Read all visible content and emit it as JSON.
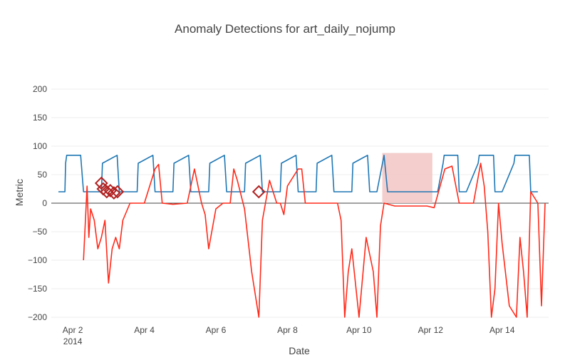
{
  "chart_data": {
    "type": "line",
    "title": "Anomaly Detections for art_daily_nojump",
    "xlabel": "Date",
    "ylabel": "Metric",
    "ylim": [
      -200,
      200
    ],
    "xlim": [
      1.4,
      15.3
    ],
    "y_ticks": [
      200,
      150,
      100,
      50,
      0,
      -50,
      -100,
      -150,
      -200
    ],
    "y_tick_labels": [
      "200",
      "150",
      "100",
      "50",
      "0",
      "−50",
      "−100",
      "−150",
      "−200"
    ],
    "x_ticks": [
      {
        "value": 2,
        "label": "Apr 2",
        "sublabel": "2014"
      },
      {
        "value": 4,
        "label": "Apr 4",
        "sublabel": ""
      },
      {
        "value": 6,
        "label": "Apr 6",
        "sublabel": ""
      },
      {
        "value": 8,
        "label": "Apr 8",
        "sublabel": ""
      },
      {
        "value": 10,
        "label": "Apr 10",
        "sublabel": ""
      },
      {
        "value": 12,
        "label": "Apr 12",
        "sublabel": ""
      },
      {
        "value": 14,
        "label": "Apr 14",
        "sublabel": ""
      }
    ],
    "grid": true,
    "legend": "none",
    "colors": {
      "metric": "#1f77b4",
      "score": "#ff2a1a",
      "anomaly_marker": "#b22222",
      "highlight": "#f2c4c4"
    },
    "highlight_region": {
      "x": [
        10.65,
        12.05
      ],
      "y": [
        0,
        88
      ]
    },
    "series": [
      {
        "role": "metric",
        "x": [
          1.6,
          1.78,
          1.8,
          1.83,
          2.22,
          2.3,
          2.5,
          2.8,
          2.83,
          3.24,
          3.3,
          3.5,
          3.8,
          3.83,
          4.24,
          4.3,
          4.5,
          4.8,
          4.83,
          5.24,
          5.3,
          5.5,
          5.8,
          5.83,
          6.24,
          6.3,
          6.5,
          6.8,
          6.83,
          7.24,
          7.3,
          7.5,
          7.8,
          7.83,
          8.24,
          8.3,
          8.5,
          8.8,
          8.83,
          9.24,
          9.3,
          9.5,
          9.8,
          9.83,
          10.24,
          10.3,
          10.5,
          10.7,
          10.8,
          11.5,
          12.2,
          12.35,
          12.38,
          12.76,
          12.8,
          13.0,
          13.33,
          13.36,
          13.76,
          13.8,
          14.0,
          14.33,
          14.36,
          14.76,
          14.8,
          15.0
        ],
        "y": [
          20,
          20,
          70,
          84,
          84,
          20,
          20,
          20,
          70,
          84,
          20,
          20,
          20,
          70,
          84,
          20,
          20,
          20,
          70,
          84,
          20,
          20,
          20,
          70,
          84,
          20,
          20,
          20,
          70,
          84,
          20,
          20,
          20,
          70,
          84,
          20,
          20,
          20,
          70,
          84,
          20,
          20,
          20,
          70,
          84,
          20,
          20,
          84,
          20,
          20,
          20,
          70,
          84,
          84,
          20,
          20,
          70,
          84,
          84,
          20,
          20,
          70,
          84,
          84,
          20,
          20
        ]
      },
      {
        "role": "score",
        "x": [
          2.3,
          2.4,
          2.45,
          2.5,
          2.6,
          2.7,
          2.8,
          2.9,
          3.0,
          3.1,
          3.2,
          3.3,
          3.4,
          3.6,
          3.8,
          4.0,
          4.3,
          4.4,
          4.5,
          4.8,
          5.2,
          5.4,
          5.6,
          5.7,
          5.8,
          6.0,
          6.2,
          6.4,
          6.5,
          6.6,
          6.8,
          7.0,
          7.2,
          7.3,
          7.5,
          7.7,
          7.8,
          7.9,
          8.0,
          8.3,
          8.4,
          8.5,
          8.8,
          9.2,
          9.4,
          9.5,
          9.6,
          9.7,
          9.8,
          10.0,
          10.2,
          10.4,
          10.5,
          10.6,
          10.7,
          11.0,
          11.5,
          11.9,
          12.1,
          12.4,
          12.6,
          12.8,
          13.2,
          13.4,
          13.5,
          13.6,
          13.7,
          13.8,
          13.9,
          14.0,
          14.2,
          14.4,
          14.5,
          14.6,
          14.7,
          14.8,
          15.0,
          15.1,
          15.2
        ],
        "y": [
          -100,
          30,
          -60,
          -10,
          -30,
          -80,
          -60,
          -30,
          -140,
          -80,
          -60,
          -80,
          -30,
          0,
          0,
          0,
          60,
          68,
          0,
          -2,
          0,
          60,
          0,
          -20,
          -80,
          -10,
          0,
          0,
          60,
          40,
          -10,
          -120,
          -200,
          -30,
          40,
          0,
          0,
          -20,
          30,
          60,
          60,
          0,
          0,
          0,
          0,
          -30,
          -200,
          -120,
          -80,
          -200,
          -60,
          -120,
          -200,
          -40,
          0,
          -5,
          -5,
          -5,
          -8,
          60,
          65,
          0,
          0,
          70,
          30,
          -50,
          -200,
          -150,
          0,
          -70,
          -180,
          -200,
          -60,
          -120,
          -200,
          20,
          0,
          -180,
          0
        ]
      }
    ],
    "anomalies": {
      "x": [
        2.8,
        2.85,
        2.95,
        3.05,
        3.15,
        3.25,
        7.2
      ],
      "y": [
        35,
        25,
        20,
        22,
        18,
        20,
        20
      ]
    }
  }
}
